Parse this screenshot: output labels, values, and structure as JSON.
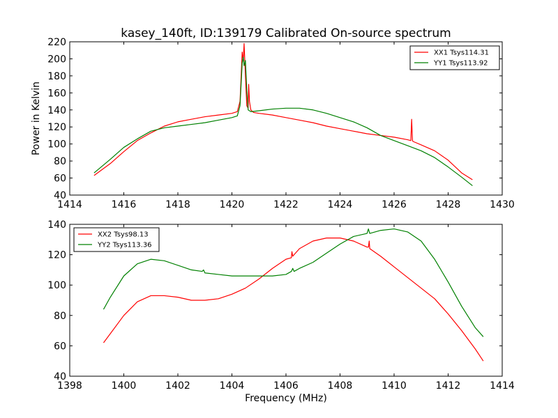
{
  "figure": {
    "title": "kasey_140ft, ID:139179 Calibrated On-source spectrum"
  },
  "chart_data": [
    {
      "type": "line",
      "title": "kasey_140ft, ID:139179 Calibrated On-source spectrum",
      "xlabel": "",
      "ylabel": "Power in Kelvin",
      "xlim": [
        1414,
        1430
      ],
      "ylim": [
        40,
        220
      ],
      "xticks": [
        1414,
        1416,
        1418,
        1420,
        1422,
        1424,
        1426,
        1428,
        1430
      ],
      "yticks": [
        40,
        60,
        80,
        100,
        120,
        140,
        160,
        180,
        200,
        220
      ],
      "grid": false,
      "legend": "top-right",
      "series": [
        {
          "name": "XX1 Tsys114.31",
          "color": "#ff0000",
          "x": [
            1414.9,
            1415.5,
            1416,
            1416.5,
            1417,
            1417.5,
            1418,
            1418.5,
            1419,
            1419.5,
            1420,
            1420.2,
            1420.3,
            1420.38,
            1420.42,
            1420.45,
            1420.5,
            1420.55,
            1420.6,
            1420.62,
            1420.65,
            1420.7,
            1420.8,
            1421,
            1421.5,
            1422,
            1422.5,
            1423,
            1423.5,
            1424,
            1424.5,
            1425,
            1425.5,
            1426,
            1426.5,
            1426.62,
            1426.65,
            1426.68,
            1426.7,
            1427,
            1427.5,
            1428,
            1428.5,
            1428.9
          ],
          "values": [
            63,
            77,
            91,
            104,
            113,
            121,
            126,
            129,
            132,
            134,
            136,
            138,
            150,
            208,
            198,
            218,
            180,
            145,
            142,
            170,
            150,
            140,
            137,
            136,
            134,
            131,
            128,
            125,
            121,
            118,
            115,
            112,
            110,
            108,
            105,
            104,
            129,
            104,
            103,
            99,
            92,
            81,
            66,
            58
          ]
        },
        {
          "name": "YY1 Tsys113.92",
          "color": "#008000",
          "x": [
            1414.9,
            1415.5,
            1416,
            1416.5,
            1417,
            1417.5,
            1418,
            1418.5,
            1419,
            1419.5,
            1420,
            1420.2,
            1420.3,
            1420.38,
            1420.42,
            1420.45,
            1420.5,
            1420.55,
            1420.6,
            1420.7,
            1421,
            1421.5,
            1422,
            1422.5,
            1423,
            1423.5,
            1424,
            1424.5,
            1425,
            1425.5,
            1426,
            1426.5,
            1427,
            1427.5,
            1428,
            1428.5,
            1428.9
          ],
          "values": [
            66,
            82,
            96,
            106,
            115,
            119,
            121,
            123,
            125,
            128,
            131,
            133,
            145,
            195,
            202,
            192,
            198,
            163,
            140,
            138,
            139,
            141,
            142,
            142,
            140,
            136,
            131,
            126,
            119,
            110,
            104,
            98,
            92,
            84,
            73,
            61,
            51
          ]
        }
      ]
    },
    {
      "type": "line",
      "title": "",
      "xlabel": "Frequency (MHz)",
      "ylabel": "",
      "xlim": [
        1398,
        1414
      ],
      "ylim": [
        40,
        140
      ],
      "xticks": [
        1398,
        1400,
        1402,
        1404,
        1406,
        1408,
        1410,
        1412,
        1414
      ],
      "yticks": [
        40,
        60,
        80,
        100,
        120,
        140
      ],
      "grid": false,
      "legend": "top-left",
      "series": [
        {
          "name": "XX2 Tsys98.13",
          "color": "#ff0000",
          "x": [
            1399.25,
            1399.5,
            1400,
            1400.5,
            1401,
            1401.5,
            1402,
            1402.5,
            1403,
            1403.5,
            1404,
            1404.5,
            1405,
            1405.5,
            1406,
            1406.2,
            1406.22,
            1406.25,
            1406.5,
            1407,
            1407.5,
            1408,
            1408.5,
            1409,
            1409.05,
            1409.08,
            1409.1,
            1409.5,
            1410,
            1410.5,
            1411,
            1411.5,
            1412,
            1412.5,
            1413,
            1413.3
          ],
          "values": [
            62,
            68,
            80,
            89,
            93,
            93,
            92,
            90,
            90,
            91,
            94,
            98,
            104,
            111,
            117,
            118,
            122,
            119,
            124,
            129,
            131,
            131,
            129,
            125,
            125,
            129,
            124,
            119,
            112,
            105,
            98,
            91,
            81,
            70,
            58,
            50
          ]
        },
        {
          "name": "YY2 Tsys113.36",
          "color": "#008000",
          "x": [
            1399.25,
            1399.5,
            1400,
            1400.5,
            1401,
            1401.5,
            1402,
            1402.5,
            1402.9,
            1402.95,
            1403,
            1403.5,
            1404,
            1404.5,
            1405,
            1405.5,
            1406,
            1406.2,
            1406.25,
            1406.3,
            1406.5,
            1407,
            1407.5,
            1408,
            1408.5,
            1409,
            1409.05,
            1409.1,
            1409.5,
            1410,
            1410.5,
            1411,
            1411.5,
            1412,
            1412.5,
            1413,
            1413.3
          ],
          "values": [
            84,
            92,
            106,
            114,
            117,
            116,
            113,
            110,
            109,
            110,
            108,
            107,
            106,
            106,
            106,
            106,
            107,
            109,
            111,
            109,
            111,
            115,
            121,
            127,
            132,
            134,
            137,
            134,
            136,
            137,
            135,
            129,
            117,
            102,
            86,
            72,
            66
          ]
        }
      ]
    }
  ]
}
